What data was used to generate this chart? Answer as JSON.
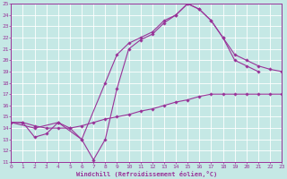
{
  "xlabel": "Windchill (Refroidissement éolien,°C)",
  "xlim": [
    0,
    23
  ],
  "ylim": [
    11,
    25
  ],
  "xticks": [
    0,
    1,
    2,
    3,
    4,
    5,
    6,
    7,
    8,
    9,
    10,
    11,
    12,
    13,
    14,
    15,
    16,
    17,
    18,
    19,
    20,
    21,
    22,
    23
  ],
  "yticks": [
    11,
    12,
    13,
    14,
    15,
    16,
    17,
    18,
    19,
    20,
    21,
    22,
    23,
    24,
    25
  ],
  "bg_color": "#c5e8e5",
  "grid_color": "#ffffff",
  "line_color": "#993399",
  "line1_x": [
    0,
    1,
    2,
    3,
    4,
    5,
    6,
    7,
    8,
    9,
    10,
    11,
    12,
    13,
    14,
    15,
    16,
    17,
    18,
    19,
    20,
    21
  ],
  "line1_y": [
    14.5,
    14.5,
    13.2,
    13.5,
    14.5,
    14.0,
    13.0,
    11.2,
    13.0,
    17.5,
    21.0,
    21.8,
    22.3,
    23.3,
    24.0,
    25.0,
    24.5,
    23.5,
    22.0,
    20.0,
    19.5,
    19.0
  ],
  "line2_x": [
    0,
    1,
    2,
    3,
    4,
    5,
    6,
    7,
    8,
    9,
    10,
    11,
    12,
    13,
    14,
    15,
    16,
    17,
    18,
    19,
    20,
    21,
    22,
    23
  ],
  "line2_y": [
    14.5,
    14.5,
    14.2,
    14.0,
    14.0,
    14.0,
    14.2,
    14.5,
    14.8,
    15.0,
    15.2,
    15.5,
    15.7,
    16.0,
    16.3,
    16.5,
    16.8,
    17.0,
    17.0,
    17.0,
    17.0,
    17.0,
    17.0,
    17.0
  ],
  "line3_x": [
    0,
    2,
    4,
    6,
    8,
    9,
    10,
    11,
    12,
    13,
    14,
    15,
    16,
    17,
    18,
    19,
    20,
    21,
    22,
    23
  ],
  "line3_y": [
    14.5,
    14.0,
    14.5,
    13.0,
    18.0,
    20.5,
    21.5,
    22.0,
    22.5,
    23.5,
    24.0,
    25.0,
    24.5,
    23.5,
    22.0,
    20.5,
    20.0,
    19.5,
    19.2,
    19.0
  ]
}
